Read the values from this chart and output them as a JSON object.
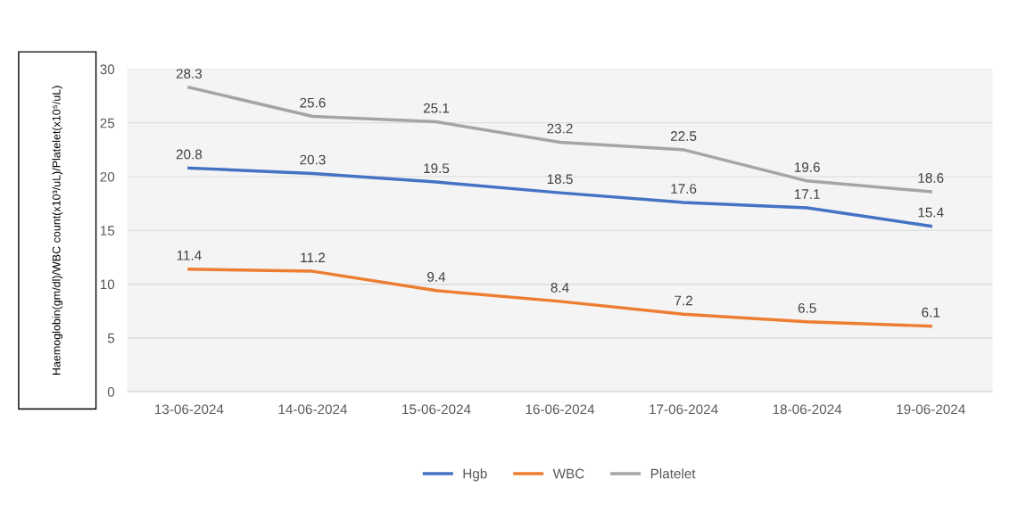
{
  "chart_data": {
    "type": "line",
    "ylabel": "Haemoglobin(gm/dl)/WBC count(x10³/uL)/Platelet(x10⁵/uL)",
    "categories": [
      "13-06-2024",
      "14-06-2024",
      "15-06-2024",
      "16-06-2024",
      "17-06-2024",
      "18-06-2024",
      "19-06-2024"
    ],
    "series": [
      {
        "name": "Hgb",
        "color": "#4472c4",
        "values": [
          20.8,
          20.3,
          19.5,
          18.5,
          17.6,
          17.1,
          15.4
        ]
      },
      {
        "name": "WBC",
        "color": "#ed7d31",
        "values": [
          11.4,
          11.2,
          9.4,
          8.4,
          7.2,
          6.5,
          6.1
        ]
      },
      {
        "name": "Platelet",
        "color": "#a5a5a5",
        "values": [
          28.3,
          25.6,
          25.1,
          23.2,
          22.5,
          19.6,
          18.6
        ]
      }
    ],
    "ylim": [
      0,
      30
    ],
    "yticks": [
      0,
      5,
      10,
      15,
      20,
      25,
      30
    ],
    "grid": "y",
    "legend": "bottom",
    "data_labels": true,
    "marker": "none",
    "line_style": "solid"
  }
}
